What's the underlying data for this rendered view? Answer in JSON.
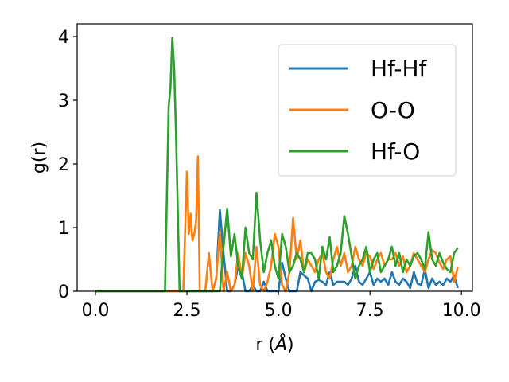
{
  "chart_data": {
    "type": "line",
    "xlabel": "r (",
    "xlabel_unit": "Å",
    "xlabel_close": ")",
    "ylabel": "g(r)",
    "xlim": [
      -0.5,
      10.3
    ],
    "ylim": [
      0,
      4.2
    ],
    "x_ticks": [
      0.0,
      2.5,
      5.0,
      7.5,
      10.0
    ],
    "x_tick_labels": [
      "0.0",
      "2.5",
      "5.0",
      "7.5",
      "10.0"
    ],
    "y_ticks": [
      0,
      1,
      2,
      3,
      4
    ],
    "y_tick_labels": [
      "0",
      "1",
      "2",
      "3",
      "4"
    ],
    "grid": false,
    "legend_position": "top-right",
    "series": [
      {
        "name": "Hf-Hf",
        "color": "#1f77b4",
        "x": [
          0.0,
          3.2,
          3.3,
          3.4,
          3.5,
          3.6,
          3.7,
          3.8,
          3.9,
          4.0,
          4.1,
          4.2,
          4.3,
          4.4,
          4.5,
          4.6,
          4.7,
          4.8,
          4.9,
          5.0,
          5.1,
          5.2,
          5.3,
          5.4,
          5.5,
          5.6,
          5.7,
          5.8,
          5.9,
          6.0,
          6.1,
          6.2,
          6.3,
          6.4,
          6.5,
          6.6,
          6.7,
          6.8,
          6.9,
          7.0,
          7.1,
          7.2,
          7.3,
          7.4,
          7.5,
          7.6,
          7.7,
          7.8,
          7.9,
          8.0,
          8.1,
          8.2,
          8.3,
          8.4,
          8.5,
          8.6,
          8.7,
          8.8,
          8.9,
          9.0,
          9.1,
          9.2,
          9.3,
          9.4,
          9.5,
          9.6,
          9.7,
          9.8,
          9.9
        ],
        "y": [
          0.0,
          0.0,
          0.2,
          1.28,
          0.6,
          0.0,
          0.0,
          0.1,
          0.4,
          0.3,
          0.0,
          0.0,
          0.1,
          0.0,
          0.0,
          0.15,
          0.0,
          0.0,
          0.0,
          0.0,
          0.45,
          0.2,
          0.0,
          0.0,
          0.0,
          0.3,
          0.25,
          0.2,
          0.0,
          0.15,
          0.18,
          0.15,
          0.1,
          0.3,
          0.1,
          0.15,
          0.15,
          0.15,
          0.1,
          0.2,
          0.4,
          0.15,
          0.1,
          0.2,
          0.3,
          0.1,
          0.2,
          0.15,
          0.2,
          0.1,
          0.3,
          0.15,
          0.1,
          0.2,
          0.15,
          0.05,
          0.3,
          0.12,
          0.1,
          0.35,
          0.05,
          0.2,
          0.1,
          0.15,
          0.1,
          0.2,
          0.15,
          0.25,
          0.05
        ]
      },
      {
        "name": "O-O",
        "color": "#ff7f0e",
        "x": [
          0.0,
          2.4,
          2.5,
          2.55,
          2.6,
          2.65,
          2.7,
          2.75,
          2.8,
          2.85,
          2.9,
          2.95,
          3.0,
          3.1,
          3.2,
          3.3,
          3.4,
          3.5,
          3.6,
          3.7,
          3.8,
          3.9,
          4.0,
          4.1,
          4.2,
          4.3,
          4.4,
          4.5,
          4.6,
          4.7,
          4.8,
          4.9,
          5.0,
          5.1,
          5.2,
          5.3,
          5.4,
          5.5,
          5.6,
          5.7,
          5.8,
          5.9,
          6.0,
          6.1,
          6.2,
          6.3,
          6.4,
          6.5,
          6.6,
          6.7,
          6.8,
          6.9,
          7.0,
          7.1,
          7.2,
          7.3,
          7.4,
          7.5,
          7.6,
          7.7,
          7.8,
          7.9,
          8.0,
          8.1,
          8.2,
          8.3,
          8.4,
          8.5,
          8.6,
          8.7,
          8.8,
          8.9,
          9.0,
          9.1,
          9.2,
          9.3,
          9.4,
          9.5,
          9.6,
          9.7,
          9.8,
          9.9
        ],
        "y": [
          0.0,
          0.0,
          1.88,
          0.9,
          1.22,
          0.8,
          0.9,
          1.1,
          2.12,
          0.0,
          0.0,
          0.0,
          0.0,
          0.6,
          0.0,
          0.2,
          0.95,
          0.0,
          0.3,
          0.0,
          0.1,
          0.6,
          0.2,
          0.6,
          0.4,
          0.0,
          0.7,
          0.1,
          0.0,
          0.15,
          0.4,
          0.9,
          0.7,
          0.1,
          0.0,
          0.3,
          1.15,
          0.5,
          0.8,
          0.3,
          0.5,
          0.4,
          0.3,
          0.5,
          0.6,
          0.3,
          0.2,
          0.5,
          0.7,
          0.4,
          0.6,
          0.3,
          0.4,
          0.7,
          0.5,
          0.4,
          0.6,
          0.55,
          0.35,
          0.5,
          0.6,
          0.4,
          0.5,
          0.5,
          0.6,
          0.4,
          0.55,
          0.3,
          0.4,
          0.6,
          0.5,
          0.4,
          0.3,
          0.5,
          0.65,
          0.6,
          0.45,
          0.35,
          0.5,
          0.55,
          0.15,
          0.38
        ]
      },
      {
        "name": "Hf-O",
        "color": "#2ca02c",
        "x": [
          0.0,
          1.9,
          2.0,
          2.05,
          2.1,
          2.15,
          2.2,
          2.3,
          2.4,
          3.0,
          3.1,
          3.2,
          3.3,
          3.4,
          3.5,
          3.6,
          3.7,
          3.8,
          3.9,
          4.0,
          4.1,
          4.2,
          4.3,
          4.4,
          4.5,
          4.6,
          4.7,
          4.8,
          4.9,
          5.0,
          5.1,
          5.2,
          5.3,
          5.4,
          5.5,
          5.6,
          5.7,
          5.8,
          5.9,
          6.0,
          6.1,
          6.2,
          6.3,
          6.4,
          6.5,
          6.6,
          6.7,
          6.8,
          6.9,
          7.0,
          7.1,
          7.2,
          7.3,
          7.4,
          7.5,
          7.6,
          7.7,
          7.8,
          7.9,
          8.0,
          8.1,
          8.2,
          8.3,
          8.4,
          8.5,
          8.6,
          8.7,
          8.8,
          8.9,
          9.0,
          9.1,
          9.2,
          9.3,
          9.4,
          9.5,
          9.6,
          9.7,
          9.8,
          9.9
        ],
        "y": [
          0.0,
          0.0,
          2.9,
          3.2,
          3.98,
          3.5,
          2.5,
          0.0,
          0.0,
          0.0,
          0.0,
          0.0,
          0.0,
          0.0,
          0.7,
          1.3,
          0.55,
          0.9,
          0.4,
          0.2,
          1.0,
          0.6,
          0.5,
          1.55,
          0.8,
          0.3,
          0.6,
          0.8,
          0.4,
          0.2,
          0.9,
          0.7,
          0.3,
          0.4,
          0.6,
          0.5,
          0.3,
          0.6,
          0.6,
          0.5,
          0.2,
          0.7,
          0.5,
          0.85,
          0.3,
          0.4,
          0.6,
          1.18,
          0.9,
          0.55,
          0.2,
          0.4,
          0.5,
          0.7,
          0.3,
          0.5,
          0.6,
          0.3,
          0.4,
          0.5,
          0.7,
          0.4,
          0.6,
          0.3,
          0.5,
          0.4,
          0.55,
          0.6,
          0.5,
          0.35,
          0.93,
          0.5,
          0.4,
          0.6,
          0.45,
          0.35,
          0.3,
          0.6,
          0.68
        ]
      }
    ]
  }
}
